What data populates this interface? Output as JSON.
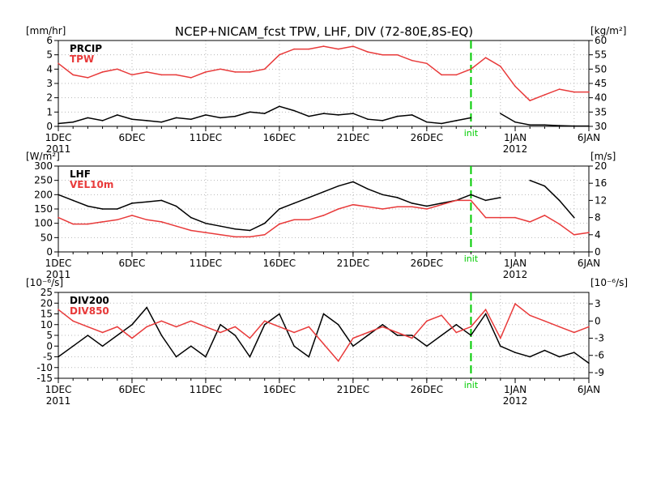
{
  "title": "NCEP+NICAM_fcst TPW, LHF, DIV (72-80E,8S-EQ)",
  "init_label": "init",
  "year_left": "2011",
  "year_right": "2012",
  "date_ticks": [
    "1DEC",
    "6DEC",
    "11DEC",
    "16DEC",
    "21DEC",
    "26DEC",
    "1JAN",
    "6JAN"
  ],
  "colors": {
    "black": "#000000",
    "red": "#e83a3a",
    "init": "#00cc00",
    "grid": "#b8b8b8"
  },
  "chart_data": [
    {
      "type": "line",
      "panel": "top",
      "x_range": [
        "2011-12-01",
        "2012-01-06"
      ],
      "init_date": "2011-12-29",
      "left_axis": {
        "unit": "[mm/hr]",
        "ylim": [
          0,
          6
        ],
        "ticks": [
          0,
          1,
          2,
          3,
          4,
          5,
          6
        ]
      },
      "right_axis": {
        "unit": "[kg/m²]",
        "ylim": [
          30,
          60
        ],
        "ticks": [
          30,
          35,
          40,
          45,
          50,
          55,
          60
        ]
      },
      "grid": true,
      "legend_position": "top-left",
      "series": [
        {
          "name": "PRCIP",
          "color": "black",
          "axis": "left",
          "x": [
            "2011-12-01",
            "2011-12-02",
            "2011-12-03",
            "2011-12-04",
            "2011-12-05",
            "2011-12-06",
            "2011-12-07",
            "2011-12-08",
            "2011-12-09",
            "2011-12-10",
            "2011-12-11",
            "2011-12-12",
            "2011-12-13",
            "2011-12-14",
            "2011-12-15",
            "2011-12-16",
            "2011-12-17",
            "2011-12-18",
            "2011-12-19",
            "2011-12-20",
            "2011-12-21",
            "2011-12-22",
            "2011-12-23",
            "2011-12-24",
            "2011-12-25",
            "2011-12-26",
            "2011-12-27",
            "2011-12-28",
            "2011-12-29",
            "2011-12-30",
            "2011-12-31",
            "2012-01-01",
            "2012-01-02",
            "2012-01-03",
            "2012-01-04",
            "2012-01-05",
            "2012-01-06"
          ],
          "values": [
            0.2,
            0.3,
            0.6,
            0.4,
            0.8,
            0.5,
            0.4,
            0.3,
            0.6,
            0.5,
            0.8,
            0.6,
            0.7,
            1.0,
            0.9,
            1.4,
            1.1,
            0.7,
            0.9,
            0.8,
            0.9,
            0.5,
            0.4,
            0.7,
            0.8,
            0.3,
            0.2,
            0.4,
            0.6,
            null,
            0.9,
            0.3,
            0.1,
            0.1,
            0.05,
            0.02,
            0.02
          ]
        },
        {
          "name": "TPW",
          "color": "red",
          "axis": "right",
          "x": [
            "2011-12-01",
            "2011-12-02",
            "2011-12-03",
            "2011-12-04",
            "2011-12-05",
            "2011-12-06",
            "2011-12-07",
            "2011-12-08",
            "2011-12-09",
            "2011-12-10",
            "2011-12-11",
            "2011-12-12",
            "2011-12-13",
            "2011-12-14",
            "2011-12-15",
            "2011-12-16",
            "2011-12-17",
            "2011-12-18",
            "2011-12-19",
            "2011-12-20",
            "2011-12-21",
            "2011-12-22",
            "2011-12-23",
            "2011-12-24",
            "2011-12-25",
            "2011-12-26",
            "2011-12-27",
            "2011-12-28",
            "2011-12-29",
            "2011-12-30",
            "2011-12-31",
            "2012-01-01",
            "2012-01-02",
            "2012-01-03",
            "2012-01-04",
            "2012-01-05",
            "2012-01-06"
          ],
          "values": [
            52,
            48,
            47,
            49,
            50,
            48,
            49,
            48,
            48,
            47,
            49,
            50,
            49,
            49,
            50,
            55,
            57,
            57,
            58,
            57,
            58,
            56,
            55,
            55,
            53,
            52,
            48,
            48,
            50,
            54,
            51,
            44,
            39,
            41,
            43,
            42,
            42
          ]
        }
      ]
    },
    {
      "type": "line",
      "panel": "middle",
      "x_range": [
        "2011-12-01",
        "2012-01-06"
      ],
      "init_date": "2011-12-29",
      "left_axis": {
        "unit": "[W/m²]",
        "ylim": [
          0,
          300
        ],
        "ticks": [
          0,
          50,
          100,
          150,
          200,
          250,
          300
        ]
      },
      "right_axis": {
        "unit": "[m/s]",
        "ylim": [
          0,
          20
        ],
        "ticks": [
          0,
          4,
          8,
          12,
          16,
          20
        ]
      },
      "grid": true,
      "legend_position": "top-left",
      "series": [
        {
          "name": "LHF",
          "color": "black",
          "axis": "left",
          "x": [
            "2011-12-01",
            "2011-12-02",
            "2011-12-03",
            "2011-12-04",
            "2011-12-05",
            "2011-12-06",
            "2011-12-07",
            "2011-12-08",
            "2011-12-09",
            "2011-12-10",
            "2011-12-11",
            "2011-12-12",
            "2011-12-13",
            "2011-12-14",
            "2011-12-15",
            "2011-12-16",
            "2011-12-17",
            "2011-12-18",
            "2011-12-19",
            "2011-12-20",
            "2011-12-21",
            "2011-12-22",
            "2011-12-23",
            "2011-12-24",
            "2011-12-25",
            "2011-12-26",
            "2011-12-27",
            "2011-12-28",
            "2011-12-29",
            "2011-12-30",
            "2011-12-31",
            "2012-01-01",
            "2012-01-02",
            "2012-01-03",
            "2012-01-04",
            "2012-01-05",
            "2012-01-06"
          ],
          "values": [
            200,
            180,
            160,
            150,
            150,
            170,
            175,
            180,
            160,
            120,
            100,
            90,
            80,
            75,
            100,
            150,
            170,
            190,
            210,
            230,
            245,
            220,
            200,
            190,
            170,
            160,
            170,
            180,
            200,
            180,
            190,
            null,
            250,
            230,
            180,
            120,
            null
          ]
        },
        {
          "name": "VEL10m",
          "color": "red",
          "axis": "right",
          "x": [
            "2011-12-01",
            "2011-12-02",
            "2011-12-03",
            "2011-12-04",
            "2011-12-05",
            "2011-12-06",
            "2011-12-07",
            "2011-12-08",
            "2011-12-09",
            "2011-12-10",
            "2011-12-11",
            "2011-12-12",
            "2011-12-13",
            "2011-12-14",
            "2011-12-15",
            "2011-12-16",
            "2011-12-17",
            "2011-12-18",
            "2011-12-19",
            "2011-12-20",
            "2011-12-21",
            "2011-12-22",
            "2011-12-23",
            "2011-12-24",
            "2011-12-25",
            "2011-12-26",
            "2011-12-27",
            "2011-12-28",
            "2011-12-29",
            "2011-12-30",
            "2011-12-31",
            "2012-01-01",
            "2012-01-02",
            "2012-01-03",
            "2012-01-04",
            "2012-01-05",
            "2012-01-06"
          ],
          "values": [
            8,
            6.5,
            6.5,
            7,
            7.5,
            8.5,
            7.5,
            7,
            6,
            5,
            4.5,
            4,
            3.5,
            3.5,
            4,
            6.5,
            7.5,
            7.5,
            8.5,
            10,
            11,
            10.5,
            10,
            10.5,
            10.5,
            10,
            11,
            12,
            12,
            8,
            8,
            8,
            7,
            8.5,
            6.5,
            4,
            4.5
          ]
        }
      ]
    },
    {
      "type": "line",
      "panel": "bottom",
      "x_range": [
        "2011-12-01",
        "2012-01-06"
      ],
      "init_date": "2011-12-29",
      "left_axis": {
        "unit": "[10⁻⁶/s]",
        "ylim": [
          -15,
          25
        ],
        "ticks": [
          -15,
          -10,
          -5,
          0,
          5,
          10,
          15,
          20,
          25
        ]
      },
      "right_axis": {
        "unit": "[10⁻⁶/s]",
        "ylim": [
          -10,
          5
        ],
        "ticks": [
          -9,
          -6,
          -3,
          0,
          3
        ]
      },
      "grid": true,
      "legend_position": "top-left",
      "series": [
        {
          "name": "DIV200",
          "color": "black",
          "axis": "left",
          "x": [
            "2011-12-01",
            "2011-12-02",
            "2011-12-03",
            "2011-12-04",
            "2011-12-05",
            "2011-12-06",
            "2011-12-07",
            "2011-12-08",
            "2011-12-09",
            "2011-12-10",
            "2011-12-11",
            "2011-12-12",
            "2011-12-13",
            "2011-12-14",
            "2011-12-15",
            "2011-12-16",
            "2011-12-17",
            "2011-12-18",
            "2011-12-19",
            "2011-12-20",
            "2011-12-21",
            "2011-12-22",
            "2011-12-23",
            "2011-12-24",
            "2011-12-25",
            "2011-12-26",
            "2011-12-27",
            "2011-12-28",
            "2011-12-29",
            "2011-12-30",
            "2011-12-31",
            "2012-01-01",
            "2012-01-02",
            "2012-01-03",
            "2012-01-04",
            "2012-01-05",
            "2012-01-06"
          ],
          "values": [
            -5,
            0,
            5,
            0,
            5,
            10,
            18,
            5,
            -5,
            0,
            -5,
            10,
            5,
            -5,
            10,
            15,
            0,
            -5,
            15,
            10,
            0,
            5,
            10,
            5,
            5,
            0,
            5,
            10,
            5,
            15,
            0,
            -3,
            -5,
            -2,
            -5,
            -3,
            -8
          ]
        },
        {
          "name": "DIV850",
          "color": "red",
          "axis": "right",
          "x": [
            "2011-12-01",
            "2011-12-02",
            "2011-12-03",
            "2011-12-04",
            "2011-12-05",
            "2011-12-06",
            "2011-12-07",
            "2011-12-08",
            "2011-12-09",
            "2011-12-10",
            "2011-12-11",
            "2011-12-12",
            "2011-12-13",
            "2011-12-14",
            "2011-12-15",
            "2011-12-16",
            "2011-12-17",
            "2011-12-18",
            "2011-12-19",
            "2011-12-20",
            "2011-12-21",
            "2011-12-22",
            "2011-12-23",
            "2011-12-24",
            "2011-12-25",
            "2011-12-26",
            "2011-12-27",
            "2011-12-28",
            "2011-12-29",
            "2011-12-30",
            "2011-12-31",
            "2012-01-01",
            "2012-01-02",
            "2012-01-03",
            "2012-01-04",
            "2012-01-05",
            "2012-01-06"
          ],
          "values": [
            2,
            0,
            -1,
            -2,
            -1,
            -3,
            -1,
            0,
            -1,
            0,
            -1,
            -2,
            -1,
            -3,
            0,
            -1,
            -2,
            -1,
            -4,
            -7,
            -3,
            -2,
            -1,
            -2,
            -3,
            0,
            1,
            -2,
            -1,
            2,
            -3,
            3,
            1,
            0,
            -1,
            -2,
            -1
          ]
        }
      ]
    }
  ]
}
